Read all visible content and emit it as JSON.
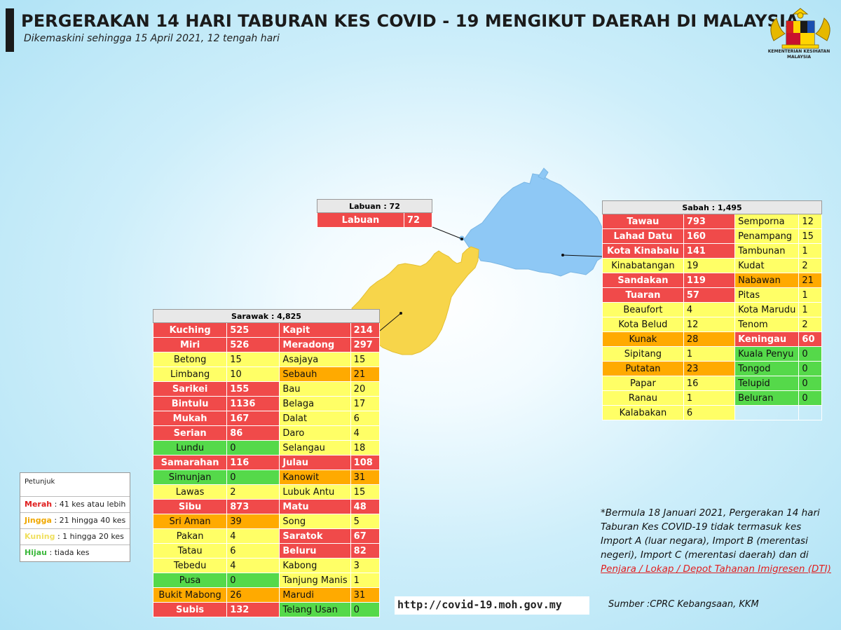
{
  "header": {
    "title": "PERGERAKAN 14 HARI TABURAN KES COVID - 19 MENGIKUT DAERAH DI MALAYSIA",
    "subtitle": "Dikemaskini sehingga 15 April 2021, 12 tengah hari",
    "logo_text_1": "KEMENTERIAN KESIHATAN",
    "logo_text_2": "MALAYSIA"
  },
  "colors": {
    "merah": "#f04a4a",
    "jingga": "#ffaa00",
    "kuning": "#ffff66",
    "hijau": "#55d94a",
    "sabah_land": "#8ec8f5",
    "sarawak_land": "#f7d54a"
  },
  "labuan": {
    "title": "Labuan : 72",
    "rows": [
      {
        "name": "Labuan",
        "value": "72",
        "level": "r"
      }
    ]
  },
  "sabah": {
    "title": "Sabah : 1,495",
    "left": [
      {
        "name": "Tawau",
        "value": "793",
        "level": "r"
      },
      {
        "name": "Lahad Datu",
        "value": "160",
        "level": "r"
      },
      {
        "name": "Kota Kinabalu",
        "value": "141",
        "level": "r"
      },
      {
        "name": "Kinabatangan",
        "value": "19",
        "level": "y"
      },
      {
        "name": "Sandakan",
        "value": "119",
        "level": "r"
      },
      {
        "name": "Tuaran",
        "value": "57",
        "level": "r"
      },
      {
        "name": "Beaufort",
        "value": "4",
        "level": "y"
      },
      {
        "name": "Kota Belud",
        "value": "12",
        "level": "y"
      },
      {
        "name": "Kunak",
        "value": "28",
        "level": "o"
      },
      {
        "name": "Sipitang",
        "value": "1",
        "level": "y"
      },
      {
        "name": "Putatan",
        "value": "23",
        "level": "o"
      },
      {
        "name": "Papar",
        "value": "16",
        "level": "y"
      },
      {
        "name": "Ranau",
        "value": "1",
        "level": "y"
      },
      {
        "name": "Kalabakan",
        "value": "6",
        "level": "y"
      }
    ],
    "right": [
      {
        "name": "Semporna",
        "value": "12",
        "level": "y"
      },
      {
        "name": "Penampang",
        "value": "15",
        "level": "y"
      },
      {
        "name": "Tambunan",
        "value": "1",
        "level": "y"
      },
      {
        "name": "Kudat",
        "value": "2",
        "level": "y"
      },
      {
        "name": "Nabawan",
        "value": "21",
        "level": "o"
      },
      {
        "name": "Pitas",
        "value": "1",
        "level": "y"
      },
      {
        "name": "Kota Marudu",
        "value": "1",
        "level": "y"
      },
      {
        "name": "Tenom",
        "value": "2",
        "level": "y"
      },
      {
        "name": "Keningau",
        "value": "60",
        "level": "r"
      },
      {
        "name": "Kuala Penyu",
        "value": "0",
        "level": "g"
      },
      {
        "name": "Tongod",
        "value": "0",
        "level": "g"
      },
      {
        "name": "Telupid",
        "value": "0",
        "level": "g"
      },
      {
        "name": "Beluran",
        "value": "0",
        "level": "g"
      }
    ]
  },
  "sarawak": {
    "title": "Sarawak : 4,825",
    "left": [
      {
        "name": "Kuching",
        "value": "525",
        "level": "r"
      },
      {
        "name": "Miri",
        "value": "526",
        "level": "r"
      },
      {
        "name": "Betong",
        "value": "15",
        "level": "y"
      },
      {
        "name": "Limbang",
        "value": "10",
        "level": "y"
      },
      {
        "name": "Sarikei",
        "value": "155",
        "level": "r"
      },
      {
        "name": "Bintulu",
        "value": "1136",
        "level": "r"
      },
      {
        "name": "Mukah",
        "value": "167",
        "level": "r"
      },
      {
        "name": "Serian",
        "value": "86",
        "level": "r"
      },
      {
        "name": "Lundu",
        "value": "0",
        "level": "g"
      },
      {
        "name": "Samarahan",
        "value": "116",
        "level": "r"
      },
      {
        "name": "Simunjan",
        "value": "0",
        "level": "g"
      },
      {
        "name": "Lawas",
        "value": "2",
        "level": "y"
      },
      {
        "name": "Sibu",
        "value": "873",
        "level": "r"
      },
      {
        "name": "Sri Aman",
        "value": "39",
        "level": "o"
      },
      {
        "name": "Pakan",
        "value": "4",
        "level": "y"
      },
      {
        "name": "Tatau",
        "value": "6",
        "level": "y"
      },
      {
        "name": "Tebedu",
        "value": "4",
        "level": "y"
      },
      {
        "name": "Pusa",
        "value": "0",
        "level": "g"
      },
      {
        "name": "Bukit Mabong",
        "value": "26",
        "level": "o"
      },
      {
        "name": "Subis",
        "value": "132",
        "level": "r"
      }
    ],
    "right": [
      {
        "name": "Kapit",
        "value": "214",
        "level": "r"
      },
      {
        "name": "Meradong",
        "value": "297",
        "level": "r"
      },
      {
        "name": "Asajaya",
        "value": "15",
        "level": "y"
      },
      {
        "name": "Sebauh",
        "value": "21",
        "level": "o"
      },
      {
        "name": "Bau",
        "value": "20",
        "level": "y"
      },
      {
        "name": "Belaga",
        "value": "17",
        "level": "y"
      },
      {
        "name": "Dalat",
        "value": "6",
        "level": "y"
      },
      {
        "name": "Daro",
        "value": "4",
        "level": "y"
      },
      {
        "name": "Selangau",
        "value": "18",
        "level": "y"
      },
      {
        "name": "Julau",
        "value": "108",
        "level": "r"
      },
      {
        "name": "Kanowit",
        "value": "31",
        "level": "o"
      },
      {
        "name": "Lubuk Antu",
        "value": "15",
        "level": "y"
      },
      {
        "name": "Matu",
        "value": "48",
        "level": "r"
      },
      {
        "name": "Song",
        "value": "5",
        "level": "y"
      },
      {
        "name": "Saratok",
        "value": "67",
        "level": "r"
      },
      {
        "name": "Beluru",
        "value": "82",
        "level": "r"
      },
      {
        "name": "Kabong",
        "value": "3",
        "level": "y"
      },
      {
        "name": "Tanjung Manis",
        "value": "1",
        "level": "y"
      },
      {
        "name": "Marudi",
        "value": "31",
        "level": "o"
      },
      {
        "name": "Telang Usan",
        "value": "0",
        "level": "g"
      }
    ]
  },
  "legend": {
    "title": "Petunjuk",
    "items": [
      {
        "key": "Merah",
        "desc": " : 41 kes atau lebih",
        "color": "#e02020"
      },
      {
        "key": "Jingga",
        "desc": " : 21 hingga 40 kes",
        "color": "#f0a800"
      },
      {
        "key": "Kuning",
        "desc": " : 1 hingga 20 kes",
        "color": "#f0e060"
      },
      {
        "key": "Hijau",
        "desc": " : tiada kes",
        "color": "#3cb83c"
      }
    ]
  },
  "note": {
    "text": "*Bermula 18 Januari 2021, Pergerakan 14 hari Taburan Kes COVID-19 tidak termasuk kes Import A (luar negara), Import B (merentasi negeri), Import C (merentasi daerah) dan di ",
    "link": "Penjara / Lokap / Depot Tahanan Imigresen (DTI)"
  },
  "footer": {
    "url": "http://covid-19.moh.gov.my",
    "source": "Sumber :CPRC Kebangsaan,  KKM"
  }
}
